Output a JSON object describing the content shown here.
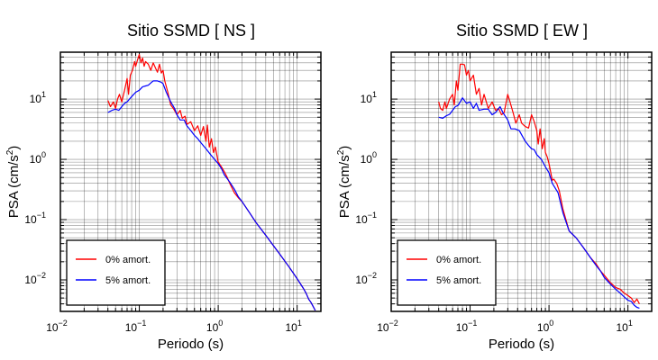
{
  "chart_data": [
    {
      "type": "line",
      "title": "Sitio SSMD [ NS ]",
      "xlabel": "Periodo (s)",
      "ylabel_main": "PSA (cm/s",
      "ylabel_sup": "2",
      "ylabel_end": ")",
      "xscale": "log",
      "yscale": "log",
      "xlim": [
        0.01,
        20
      ],
      "ylim": [
        0.003,
        60
      ],
      "grid": true,
      "legend_position": "bottom-left",
      "xticks": [
        {
          "value": 0.01,
          "base": "10",
          "exp": "−2"
        },
        {
          "value": 0.1,
          "base": "10",
          "exp": "−1"
        },
        {
          "value": 1,
          "base": "10",
          "exp": "0"
        },
        {
          "value": 10,
          "base": "10",
          "exp": "1"
        }
      ],
      "yticks": [
        {
          "value": 0.01,
          "base": "10",
          "exp": "−2"
        },
        {
          "value": 0.1,
          "base": "10",
          "exp": "−1"
        },
        {
          "value": 1,
          "base": "10",
          "exp": "0"
        },
        {
          "value": 10,
          "base": "10",
          "exp": "1"
        }
      ],
      "series": [
        {
          "name": "0% amort.",
          "color": "#ff0000",
          "points": [
            [
              0.04,
              9.5
            ],
            [
              0.043,
              7.5
            ],
            [
              0.047,
              9.0
            ],
            [
              0.05,
              7.0
            ],
            [
              0.053,
              10.0
            ],
            [
              0.056,
              12.0
            ],
            [
              0.06,
              9.0
            ],
            [
              0.065,
              14.0
            ],
            [
              0.07,
              22.0
            ],
            [
              0.073,
              12.0
            ],
            [
              0.077,
              25.0
            ],
            [
              0.082,
              30.0
            ],
            [
              0.087,
              42.0
            ],
            [
              0.09,
              35.0
            ],
            [
              0.095,
              45.0
            ],
            [
              0.1,
              55.0
            ],
            [
              0.105,
              40.0
            ],
            [
              0.11,
              48.0
            ],
            [
              0.115,
              35.0
            ],
            [
              0.12,
              42.0
            ],
            [
              0.13,
              38.0
            ],
            [
              0.14,
              30.0
            ],
            [
              0.15,
              40.0
            ],
            [
              0.16,
              33.0
            ],
            [
              0.17,
              28.0
            ],
            [
              0.18,
              38.0
            ],
            [
              0.19,
              27.0
            ],
            [
              0.2,
              30.0
            ],
            [
              0.21,
              20.0
            ],
            [
              0.23,
              13.0
            ],
            [
              0.25,
              8.0
            ],
            [
              0.27,
              7.0
            ],
            [
              0.3,
              5.5
            ],
            [
              0.33,
              6.5
            ],
            [
              0.35,
              4.8
            ],
            [
              0.38,
              5.2
            ],
            [
              0.4,
              3.8
            ],
            [
              0.45,
              4.2
            ],
            [
              0.5,
              3.0
            ],
            [
              0.55,
              3.6
            ],
            [
              0.6,
              2.5
            ],
            [
              0.65,
              3.5
            ],
            [
              0.7,
              2.0
            ],
            [
              0.73,
              3.7
            ],
            [
              0.77,
              1.6
            ],
            [
              0.82,
              2.2
            ],
            [
              0.87,
              1.3
            ],
            [
              0.92,
              1.6
            ],
            [
              1.0,
              0.9
            ],
            [
              1.1,
              0.75
            ],
            [
              1.2,
              0.62
            ],
            [
              1.3,
              0.5
            ],
            [
              1.4,
              0.4
            ],
            [
              1.6,
              0.28
            ],
            [
              1.8,
              0.23
            ],
            [
              2.0,
              0.2
            ],
            [
              2.5,
              0.13
            ],
            [
              3.0,
              0.09
            ],
            [
              4.0,
              0.055
            ],
            [
              5.0,
              0.037
            ],
            [
              6.0,
              0.027
            ],
            [
              8.0,
              0.016
            ],
            [
              10.0,
              0.0105
            ],
            [
              12.0,
              0.0072
            ],
            [
              13.0,
              0.006
            ],
            [
              14.0,
              0.0048
            ],
            [
              15.0,
              0.0042
            ],
            [
              16.0,
              0.0036
            ],
            [
              17.0,
              0.0031
            ]
          ]
        },
        {
          "name": "5% amort.",
          "color": "#0000ff",
          "points": [
            [
              0.04,
              6.0
            ],
            [
              0.045,
              6.5
            ],
            [
              0.05,
              6.8
            ],
            [
              0.055,
              6.5
            ],
            [
              0.06,
              7.5
            ],
            [
              0.065,
              8.5
            ],
            [
              0.07,
              9.0
            ],
            [
              0.075,
              10.0
            ],
            [
              0.08,
              11.0
            ],
            [
              0.085,
              12.0
            ],
            [
              0.09,
              13.0
            ],
            [
              0.1,
              14.0
            ],
            [
              0.11,
              16.0
            ],
            [
              0.12,
              16.5
            ],
            [
              0.13,
              17.0
            ],
            [
              0.14,
              18.5
            ],
            [
              0.15,
              20.0
            ],
            [
              0.17,
              20.0
            ],
            [
              0.19,
              19.0
            ],
            [
              0.2,
              18.0
            ],
            [
              0.22,
              13.0
            ],
            [
              0.25,
              9.0
            ],
            [
              0.28,
              7.0
            ],
            [
              0.3,
              5.5
            ],
            [
              0.33,
              4.5
            ],
            [
              0.37,
              4.5
            ],
            [
              0.4,
              3.6
            ],
            [
              0.45,
              3.0
            ],
            [
              0.5,
              2.5
            ],
            [
              0.55,
              2.2
            ],
            [
              0.6,
              1.9
            ],
            [
              0.7,
              1.5
            ],
            [
              0.8,
              1.2
            ],
            [
              0.9,
              1.0
            ],
            [
              1.0,
              0.85
            ],
            [
              1.1,
              0.7
            ],
            [
              1.2,
              0.55
            ],
            [
              1.4,
              0.42
            ],
            [
              1.6,
              0.32
            ],
            [
              1.8,
              0.24
            ],
            [
              2.0,
              0.2
            ],
            [
              2.5,
              0.13
            ],
            [
              3.0,
              0.09
            ],
            [
              4.0,
              0.055
            ],
            [
              5.0,
              0.037
            ],
            [
              6.0,
              0.027
            ],
            [
              8.0,
              0.016
            ],
            [
              10.0,
              0.0105
            ],
            [
              12.0,
              0.0072
            ],
            [
              13.0,
              0.006
            ],
            [
              14.0,
              0.0048
            ],
            [
              15.0,
              0.0042
            ],
            [
              16.0,
              0.0036
            ],
            [
              17.0,
              0.0031
            ]
          ]
        }
      ]
    },
    {
      "type": "line",
      "title": "Sitio SSMD [ EW ]",
      "xlabel": "Periodo (s)",
      "ylabel_main": "PSA (cm/s",
      "ylabel_sup": "2",
      "ylabel_end": ")",
      "xscale": "log",
      "yscale": "log",
      "xlim": [
        0.01,
        20
      ],
      "ylim": [
        0.003,
        60
      ],
      "grid": true,
      "legend_position": "bottom-left",
      "xticks": [
        {
          "value": 0.01,
          "base": "10",
          "exp": "−2"
        },
        {
          "value": 0.1,
          "base": "10",
          "exp": "−1"
        },
        {
          "value": 1,
          "base": "10",
          "exp": "0"
        },
        {
          "value": 10,
          "base": "10",
          "exp": "1"
        }
      ],
      "yticks": [
        {
          "value": 0.01,
          "base": "10",
          "exp": "−2"
        },
        {
          "value": 0.1,
          "base": "10",
          "exp": "−1"
        },
        {
          "value": 1,
          "base": "10",
          "exp": "0"
        },
        {
          "value": 10,
          "base": "10",
          "exp": "1"
        }
      ],
      "series": [
        {
          "name": "0% amort.",
          "color": "#ff0000",
          "points": [
            [
              0.04,
              9.0
            ],
            [
              0.042,
              7.0
            ],
            [
              0.045,
              6.5
            ],
            [
              0.048,
              9.0
            ],
            [
              0.05,
              7.0
            ],
            [
              0.055,
              10.0
            ],
            [
              0.06,
              12.0
            ],
            [
              0.063,
              8.0
            ],
            [
              0.067,
              20.0
            ],
            [
              0.07,
              14.0
            ],
            [
              0.075,
              38.0
            ],
            [
              0.08,
              38.0
            ],
            [
              0.085,
              37.0
            ],
            [
              0.09,
              25.0
            ],
            [
              0.095,
              30.0
            ],
            [
              0.1,
              20.0
            ],
            [
              0.11,
              25.0
            ],
            [
              0.12,
              12.0
            ],
            [
              0.13,
              15.0
            ],
            [
              0.14,
              8.0
            ],
            [
              0.15,
              12.0
            ],
            [
              0.17,
              7.0
            ],
            [
              0.19,
              9.0
            ],
            [
              0.21,
              6.5
            ],
            [
              0.23,
              7.0
            ],
            [
              0.25,
              5.5
            ],
            [
              0.27,
              6.0
            ],
            [
              0.3,
              12.0
            ],
            [
              0.32,
              9.0
            ],
            [
              0.35,
              6.0
            ],
            [
              0.38,
              4.0
            ],
            [
              0.42,
              5.5
            ],
            [
              0.45,
              4.0
            ],
            [
              0.5,
              3.5
            ],
            [
              0.55,
              3.3
            ],
            [
              0.6,
              5.5
            ],
            [
              0.65,
              4.2
            ],
            [
              0.7,
              3.0
            ],
            [
              0.73,
              1.8
            ],
            [
              0.77,
              3.2
            ],
            [
              0.82,
              1.5
            ],
            [
              0.87,
              2.2
            ],
            [
              0.9,
              1.3
            ],
            [
              0.95,
              1.1
            ],
            [
              1.0,
              0.85
            ],
            [
              1.1,
              0.45
            ],
            [
              1.15,
              0.47
            ],
            [
              1.25,
              0.4
            ],
            [
              1.35,
              0.3
            ],
            [
              1.5,
              0.15
            ],
            [
              1.8,
              0.065
            ],
            [
              2.2,
              0.05
            ],
            [
              2.7,
              0.035
            ],
            [
              3.3,
              0.024
            ],
            [
              4.0,
              0.018
            ],
            [
              4.5,
              0.014
            ],
            [
              5.0,
              0.012
            ],
            [
              6.0,
              0.009
            ],
            [
              7.0,
              0.0075
            ],
            [
              8.0,
              0.007
            ],
            [
              9.0,
              0.006
            ],
            [
              10.0,
              0.0055
            ],
            [
              11.0,
              0.005
            ],
            [
              12.0,
              0.0042
            ],
            [
              13.0,
              0.0048
            ],
            [
              14.0,
              0.004
            ]
          ]
        },
        {
          "name": "5% amort.",
          "color": "#0000ff",
          "points": [
            [
              0.04,
              5.0
            ],
            [
              0.045,
              4.8
            ],
            [
              0.05,
              5.3
            ],
            [
              0.055,
              5.6
            ],
            [
              0.06,
              6.5
            ],
            [
              0.065,
              7.5
            ],
            [
              0.07,
              7.8
            ],
            [
              0.075,
              9.0
            ],
            [
              0.08,
              10.5
            ],
            [
              0.09,
              8.5
            ],
            [
              0.1,
              9.0
            ],
            [
              0.11,
              7.0
            ],
            [
              0.12,
              8.5
            ],
            [
              0.13,
              6.5
            ],
            [
              0.15,
              6.8
            ],
            [
              0.17,
              6.8
            ],
            [
              0.19,
              5.5
            ],
            [
              0.21,
              6.0
            ],
            [
              0.24,
              7.5
            ],
            [
              0.26,
              6.0
            ],
            [
              0.3,
              4.5
            ],
            [
              0.33,
              3.2
            ],
            [
              0.37,
              3.2
            ],
            [
              0.42,
              3.0
            ],
            [
              0.5,
              2.0
            ],
            [
              0.55,
              1.7
            ],
            [
              0.6,
              1.5
            ],
            [
              0.65,
              1.45
            ],
            [
              0.7,
              1.2
            ],
            [
              0.8,
              1.0
            ],
            [
              0.9,
              0.75
            ],
            [
              1.0,
              0.6
            ],
            [
              1.1,
              0.4
            ],
            [
              1.3,
              0.28
            ],
            [
              1.5,
              0.13
            ],
            [
              1.8,
              0.065
            ],
            [
              2.2,
              0.05
            ],
            [
              2.7,
              0.035
            ],
            [
              3.3,
              0.024
            ],
            [
              4.0,
              0.017
            ],
            [
              4.5,
              0.014
            ],
            [
              5.0,
              0.011
            ],
            [
              6.0,
              0.0085
            ],
            [
              7.0,
              0.007
            ],
            [
              8.0,
              0.006
            ],
            [
              9.0,
              0.0052
            ],
            [
              10.0,
              0.0046
            ],
            [
              11.0,
              0.0044
            ],
            [
              12.0,
              0.0038
            ],
            [
              13.0,
              0.0035
            ],
            [
              14.0,
              0.0034
            ]
          ]
        }
      ]
    }
  ]
}
